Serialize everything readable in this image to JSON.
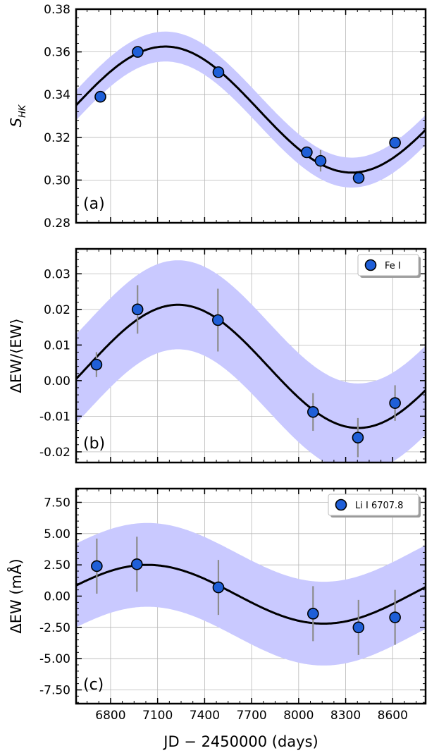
{
  "figure": {
    "xlabel": "JD − 2450000 (days)"
  },
  "chart_data": [
    {
      "type": "scatter",
      "panel_label": "(a)",
      "ylabel": "S",
      "ylabel_sub": "HK",
      "xlim": [
        6580,
        8810
      ],
      "ylim": [
        0.28,
        0.38
      ],
      "xticks": [
        "6800",
        "7100",
        "7400",
        "7700",
        "8000",
        "8300",
        "8600"
      ],
      "xtick_values": [
        6800,
        7100,
        7400,
        7700,
        8000,
        8300,
        8600
      ],
      "yticks": [
        "0.28",
        "0.30",
        "0.32",
        "0.34",
        "0.36",
        "0.38"
      ],
      "ytick_values": [
        0.28,
        0.3,
        0.32,
        0.34,
        0.36,
        0.38
      ],
      "legend": "",
      "fit": {
        "model": "sinusoid",
        "mean": 0.333,
        "amplitude": 0.0295,
        "period": 2380,
        "phase_x": 6554,
        "band_halfwidth": 0.007
      },
      "series": [
        {
          "x": [
            6735,
            6973,
            7488,
            8052,
            8140,
            8383,
            8615
          ],
          "y": [
            0.339,
            0.36,
            0.3505,
            0.313,
            0.309,
            0.301,
            0.3175
          ],
          "yerr": [
            0.0,
            0.0,
            0.0,
            0.0,
            0.005,
            0.0,
            0.0
          ]
        }
      ]
    },
    {
      "type": "scatter",
      "panel_label": "(b)",
      "ylabel": "ΔEW/⟨EW⟩",
      "ylabel_sub": "",
      "xlim": [
        6580,
        8810
      ],
      "ylim": [
        -0.023,
        0.037
      ],
      "xticks": [
        "6800",
        "7100",
        "7400",
        "7700",
        "8000",
        "8300",
        "8600"
      ],
      "xtick_values": [
        6800,
        7100,
        7400,
        7700,
        8000,
        8300,
        8600
      ],
      "yticks": [
        "-0.02",
        "-0.01",
        "0.00",
        "0.01",
        "0.02",
        "0.03"
      ],
      "ytick_values": [
        -0.02,
        -0.01,
        0.0,
        0.01,
        0.02,
        0.03
      ],
      "legend": "Fe I",
      "fit": {
        "model": "sinusoid",
        "mean": 0.004,
        "amplitude": 0.0173,
        "period": 2300,
        "phase_x": 6655,
        "band_halfwidth": 0.0125
      },
      "series": [
        {
          "name": "Fe I",
          "x": [
            6710,
            6972,
            7485,
            8092,
            8378,
            8615
          ],
          "y": [
            0.0045,
            0.02,
            0.017,
            -0.0088,
            -0.016,
            -0.0063
          ],
          "yerr": [
            0.0035,
            0.0068,
            0.0088,
            0.0053,
            0.0055,
            0.005
          ]
        }
      ]
    },
    {
      "type": "scatter",
      "panel_label": "(c)",
      "ylabel": "ΔEW (mÅ)",
      "ylabel_sub": "",
      "xlim": [
        6580,
        8810
      ],
      "ylim": [
        -8.6,
        8.6
      ],
      "xticks": [
        "6800",
        "7100",
        "7400",
        "7700",
        "8000",
        "8300",
        "8600"
      ],
      "xtick_values": [
        6800,
        7100,
        7400,
        7700,
        8000,
        8300,
        8600
      ],
      "yticks": [
        "-7.50",
        "-5.00",
        "-2.50",
        "0.00",
        "2.50",
        "5.00",
        "7.50"
      ],
      "ytick_values": [
        -7.5,
        -5.0,
        -2.5,
        0.0,
        2.5,
        5.0,
        7.5
      ],
      "legend": "Li I 6707.8",
      "fit": {
        "model": "sinusoid",
        "mean": 0.15,
        "amplitude": 2.35,
        "period": 2250,
        "phase_x": 6472,
        "band_halfwidth": 3.35
      },
      "series": [
        {
          "name": "Li I 6707.8",
          "x": [
            6712,
            6968,
            7488,
            8092,
            8382,
            8615
          ],
          "y": [
            2.4,
            2.55,
            0.7,
            -1.4,
            -2.5,
            -1.7
          ],
          "yerr": [
            2.2,
            2.2,
            2.2,
            2.2,
            2.2,
            2.2
          ]
        }
      ]
    }
  ]
}
